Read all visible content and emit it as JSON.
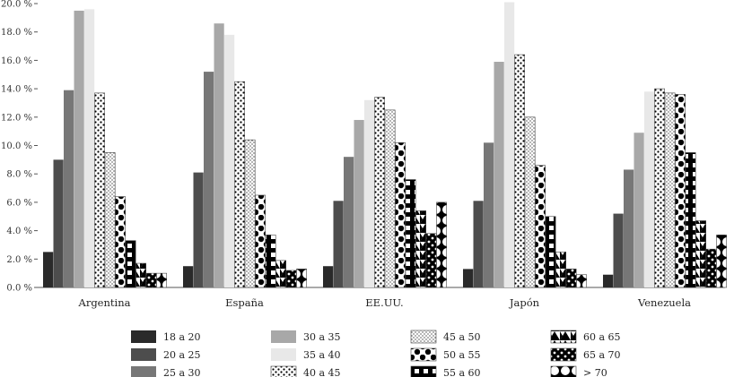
{
  "chart_data": {
    "type": "bar",
    "title": "",
    "xlabel": "",
    "ylabel": "",
    "ylim": [
      0,
      20
    ],
    "y_ticks": [
      "0.0 %",
      "2.0 %",
      "4.0 %",
      "6.0 %",
      "8.0 %",
      "10.0 %",
      "12.0 %",
      "14.0 %",
      "16.0 %",
      "18.0 %",
      "20.0 %"
    ],
    "y_tick_values": [
      0,
      2,
      4,
      6,
      8,
      10,
      12,
      14,
      16,
      18,
      20
    ],
    "categories": [
      "Argentina",
      "España",
      "EE.UU.",
      "Japón",
      "Venezuela"
    ],
    "series": [
      {
        "name": "18 a 20",
        "fill": "solid",
        "color": "#2a2a2a",
        "values": [
          2.5,
          1.5,
          1.5,
          1.3,
          0.9
        ]
      },
      {
        "name": "20 a 25",
        "fill": "solid",
        "color": "#4d4d4d",
        "values": [
          9.0,
          8.1,
          6.1,
          6.1,
          5.2
        ]
      },
      {
        "name": "25 a 30",
        "fill": "solid",
        "color": "#777777",
        "values": [
          13.9,
          15.2,
          9.2,
          10.2,
          8.3
        ]
      },
      {
        "name": "30 a 35",
        "fill": "solid",
        "color": "#a8a8a8",
        "values": [
          19.5,
          18.6,
          11.8,
          15.9,
          10.9
        ]
      },
      {
        "name": "35 a 40",
        "fill": "solid",
        "color": "#e8e8e8",
        "values": [
          19.6,
          17.8,
          13.2,
          20.1,
          13.8
        ]
      },
      {
        "name": "40 a 45",
        "fill": "dots",
        "color": "#ffffff",
        "values": [
          13.7,
          14.5,
          13.4,
          16.4,
          14.0
        ]
      },
      {
        "name": "45 a 50",
        "fill": "fine-dots",
        "color": "#ffffff",
        "values": [
          9.5,
          10.4,
          12.5,
          12.0,
          13.7
        ]
      },
      {
        "name": "50 a 55",
        "fill": "big-dots",
        "color": "#000000",
        "values": [
          6.4,
          6.5,
          10.2,
          8.6,
          13.6
        ]
      },
      {
        "name": "55 a 60",
        "fill": "squares",
        "color": "#000000",
        "values": [
          3.3,
          3.7,
          7.6,
          5.0,
          9.5
        ]
      },
      {
        "name": "60 a 65",
        "fill": "zigzag",
        "color": "#000000",
        "values": [
          1.7,
          1.9,
          5.4,
          2.5,
          4.7
        ]
      },
      {
        "name": "65 a 70",
        "fill": "checker-dots",
        "color": "#000000",
        "values": [
          1.0,
          1.2,
          3.8,
          1.3,
          2.7
        ]
      },
      {
        "name": "> 70",
        "fill": "circles",
        "color": "#000000",
        "values": [
          1.0,
          1.3,
          6.0,
          0.9,
          3.7
        ]
      }
    ],
    "legend": {
      "placement": "bottom",
      "columns": 4
    }
  }
}
